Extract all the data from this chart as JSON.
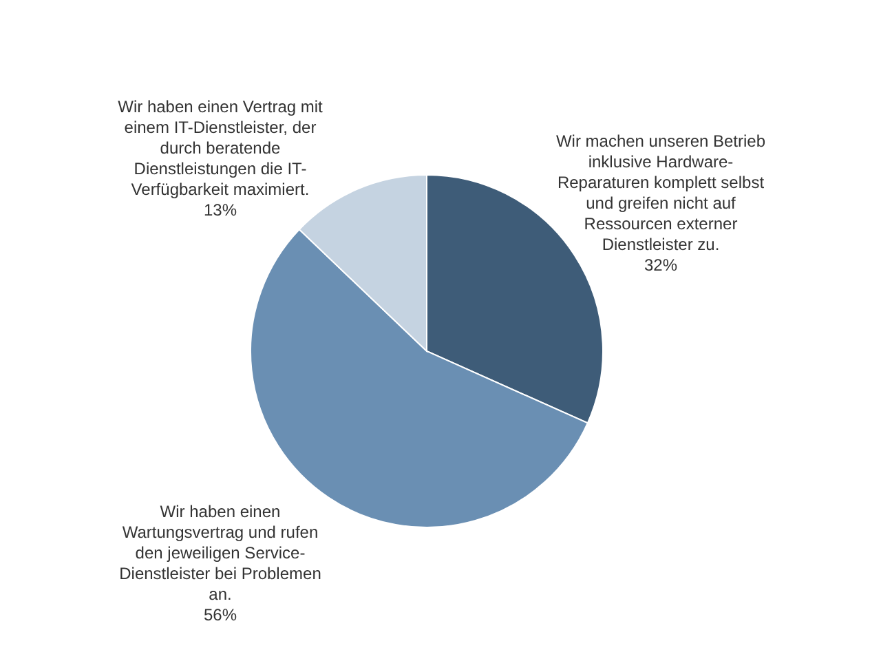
{
  "chart_data": {
    "type": "pie",
    "categories": [
      "Wir machen unseren Betrieb inklusive Hardware-Reparaturen komplett selbst und greifen nicht auf Ressourcen externer Dienstleister zu.",
      "Wir haben einen Wartungsvertrag und rufen den jeweiligen Service-Dienstleister bei Problemen an.",
      "Wir haben einen Vertrag mit einem IT-Dienstleister, der durch beratende Dienstleistungen die IT-Verfügbarkeit maximiert."
    ],
    "values": [
      32,
      56,
      13
    ],
    "value_labels": [
      "32%",
      "56%",
      "13%"
    ],
    "colors": [
      "#3e5c78",
      "#6a8fb3",
      "#c5d3e1"
    ]
  }
}
